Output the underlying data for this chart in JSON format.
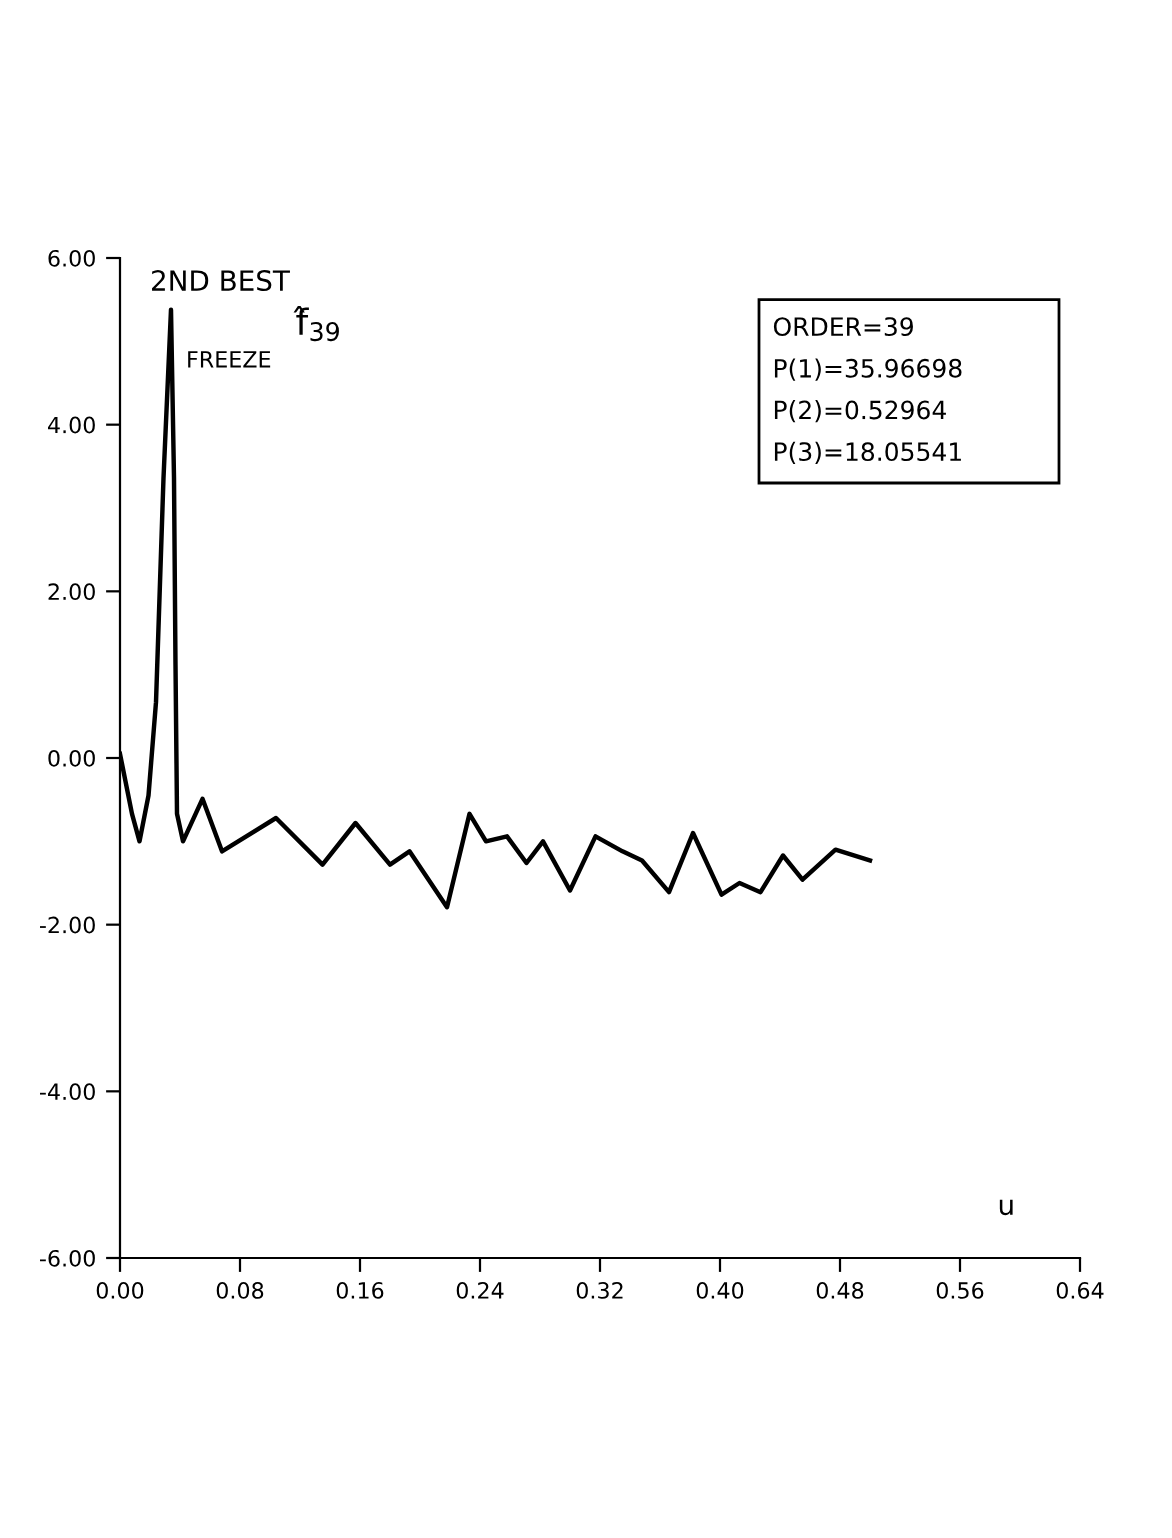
{
  "chart_data": {
    "type": "line",
    "title": "2ND BEST",
    "subtitle": "f̂$_{39}$",
    "xlabel": "u",
    "annotations": [
      "FREEZE",
      "ORDER=39",
      "P(1)=35.96698",
      "P(2)=0.52964",
      "P(3)=18.05541"
    ],
    "x": [
      0,
      0.008,
      0.013,
      0.019,
      0.024,
      0.029,
      0.034,
      0.036,
      0.037,
      0.038,
      0.042,
      0.055,
      0.068,
      0.104,
      0.135,
      0.157,
      0.18,
      0.193,
      0.218,
      0.233,
      0.244,
      0.258,
      0.271,
      0.282,
      0.3,
      0.317,
      0.335,
      0.348,
      0.366,
      0.382,
      0.401,
      0.413,
      0.427,
      0.442,
      0.455,
      0.477,
      0.5
    ],
    "series": [
      {
        "color": "#000000",
        "values": [
          0.05,
          -0.67,
          -1.0,
          -0.45,
          0.67,
          3.36,
          5.38,
          3.36,
          1.12,
          -0.67,
          -1.0,
          -0.49,
          -1.12,
          -0.72,
          -1.28,
          -0.78,
          -1.28,
          -1.12,
          -1.79,
          -0.67,
          -1.0,
          -0.94,
          -1.26,
          -1.0,
          -1.59,
          -0.94,
          -1.12,
          -1.23,
          -1.61,
          -0.9,
          -1.64,
          -1.5,
          -1.61,
          -1.17,
          -1.46,
          -1.1,
          -1.23
        ]
      }
    ],
    "xlim": [
      0,
      0.64
    ],
    "xticks": [
      {
        "value": 0,
        "label": "0.00"
      },
      0.08,
      0.16,
      0.24,
      0.32,
      {
        "value": 0.4,
        "label": "0.40"
      },
      0.48,
      0.56,
      0.64
    ],
    "ylim": [
      -6,
      6
    ],
    "yticks": [
      {
        "value": -6,
        "label": "-6.00"
      },
      {
        "value": -4,
        "label": "-4.00"
      },
      {
        "value": -2,
        "label": "-2.00"
      },
      {
        "value": 0,
        "label": "0.00"
      },
      {
        "value": 2,
        "label": "2.00"
      },
      {
        "value": 4,
        "label": "4.00"
      },
      {
        "value": 6,
        "label": "6.00"
      }
    ]
  }
}
